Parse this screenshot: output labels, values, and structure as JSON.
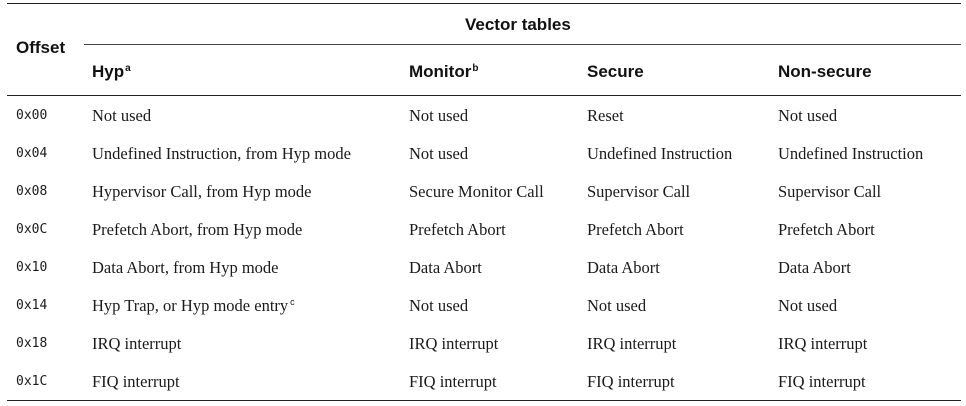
{
  "header": {
    "group_title": "Vector tables",
    "offset": "Offset",
    "columns": [
      {
        "label": "Hyp",
        "note": "a"
      },
      {
        "label": "Monitor",
        "note": "b"
      },
      {
        "label": "Secure",
        "note": ""
      },
      {
        "label": "Non-secure",
        "note": ""
      }
    ]
  },
  "rows": [
    {
      "offset": "0x00",
      "hyp": "Not used",
      "hyp_note": "",
      "monitor": "Not used",
      "secure": "Reset",
      "nonsecure": "Not used"
    },
    {
      "offset": "0x04",
      "hyp": "Undefined Instruction, from Hyp mode",
      "hyp_note": "",
      "monitor": "Not used",
      "secure": "Undefined Instruction",
      "nonsecure": "Undefined Instruction"
    },
    {
      "offset": "0x08",
      "hyp": "Hypervisor Call, from Hyp mode",
      "hyp_note": "",
      "monitor": "Secure Monitor Call",
      "secure": "Supervisor Call",
      "nonsecure": "Supervisor Call"
    },
    {
      "offset": "0x0C",
      "hyp": "Prefetch Abort, from Hyp mode",
      "hyp_note": "",
      "monitor": "Prefetch Abort",
      "secure": "Prefetch Abort",
      "nonsecure": "Prefetch Abort"
    },
    {
      "offset": "0x10",
      "hyp": "Data Abort, from Hyp mode",
      "hyp_note": "",
      "monitor": "Data Abort",
      "secure": "Data Abort",
      "nonsecure": "Data Abort"
    },
    {
      "offset": "0x14",
      "hyp": "Hyp Trap, or Hyp mode entry",
      "hyp_note": "c",
      "monitor": "Not used",
      "secure": "Not used",
      "nonsecure": "Not used"
    },
    {
      "offset": "0x18",
      "hyp": "IRQ interrupt",
      "hyp_note": "",
      "monitor": "IRQ interrupt",
      "secure": "IRQ interrupt",
      "nonsecure": "IRQ interrupt"
    },
    {
      "offset": "0x1C",
      "hyp": "FIQ interrupt",
      "hyp_note": "",
      "monitor": "FIQ interrupt",
      "secure": "FIQ interrupt",
      "nonsecure": "FIQ interrupt"
    }
  ]
}
